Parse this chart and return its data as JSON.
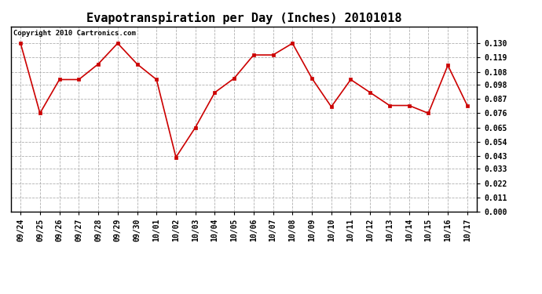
{
  "title": "Evapotranspiration per Day (Inches) 20101018",
  "copyright_text": "Copyright 2010 Cartronics.com",
  "dates": [
    "09/24",
    "09/25",
    "09/26",
    "09/27",
    "09/28",
    "09/29",
    "09/30",
    "10/01",
    "10/02",
    "10/03",
    "10/04",
    "10/05",
    "10/06",
    "10/07",
    "10/08",
    "10/09",
    "10/10",
    "10/11",
    "10/12",
    "10/13",
    "10/14",
    "10/15",
    "10/16",
    "10/17"
  ],
  "values": [
    0.13,
    0.076,
    0.102,
    0.102,
    0.114,
    0.13,
    0.114,
    0.102,
    0.042,
    0.065,
    0.092,
    0.103,
    0.121,
    0.121,
    0.13,
    0.103,
    0.081,
    0.102,
    0.092,
    0.082,
    0.082,
    0.076,
    0.113,
    0.082
  ],
  "line_color": "#cc0000",
  "marker_color": "#cc0000",
  "bg_color": "#ffffff",
  "grid_color": "#b0b0b0",
  "ylim": [
    0.0,
    0.143
  ],
  "yticks": [
    0.0,
    0.011,
    0.022,
    0.033,
    0.043,
    0.054,
    0.065,
    0.076,
    0.087,
    0.098,
    0.108,
    0.119,
    0.13
  ],
  "title_fontsize": 11,
  "tick_fontsize": 7,
  "copyright_fontsize": 6.5
}
